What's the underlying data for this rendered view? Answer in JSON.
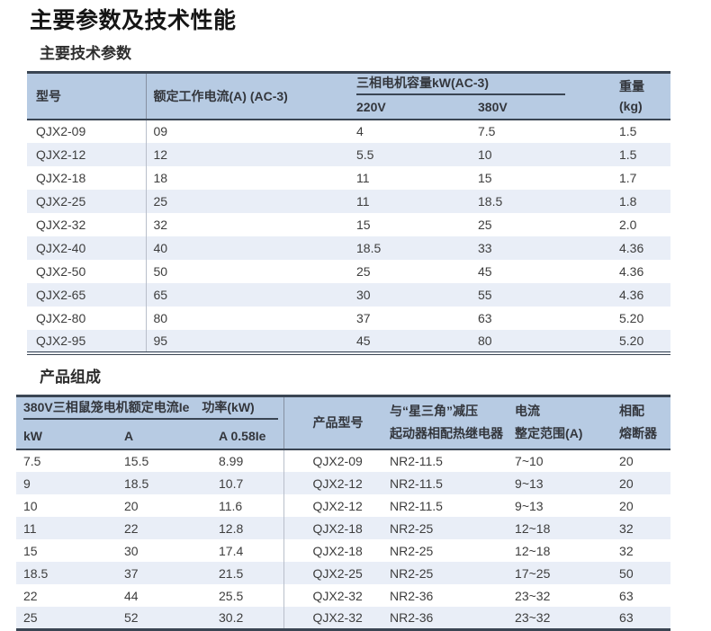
{
  "page": {
    "title": "主要参数及技术性能",
    "section1_title": "主要技术参数",
    "section2_title": "产品组成"
  },
  "colors": {
    "header_bg": "#b7cbe3",
    "stripe_bg": "#e9eef7",
    "border_dark": "#3a4553",
    "text": "#3d3d3d"
  },
  "table1": {
    "headers": {
      "model": "型号",
      "rated_current": "额定工作电流(A) (AC-3)",
      "motor_capacity_group": "三相电机容量kW(AC-3)",
      "v220": "220V",
      "v380": "380V",
      "weight_line1": "重量",
      "weight_line2": "(kg)"
    },
    "rows": [
      [
        "QJX2-09",
        "09",
        "4",
        "7.5",
        "1.5"
      ],
      [
        "QJX2-12",
        "12",
        "5.5",
        "10",
        "1.5"
      ],
      [
        "QJX2-18",
        "18",
        "11",
        "15",
        "1.7"
      ],
      [
        "QJX2-25",
        "25",
        "11",
        "18.5",
        "1.8"
      ],
      [
        "QJX2-32",
        "32",
        "15",
        "25",
        "2.0"
      ],
      [
        "QJX2-40",
        "40",
        "18.5",
        "33",
        "4.36"
      ],
      [
        "QJX2-50",
        "50",
        "25",
        "45",
        "4.36"
      ],
      [
        "QJX2-65",
        "65",
        "30",
        "55",
        "4.36"
      ],
      [
        "QJX2-80",
        "80",
        "37",
        "63",
        "5.20"
      ],
      [
        "QJX2-95",
        "95",
        "45",
        "80",
        "5.20"
      ]
    ]
  },
  "table2": {
    "headers": {
      "motor_group": "380V三相鼠笼电机额定电流Ie　功率(kW)",
      "kw": "kW",
      "a": "A",
      "a058": "A  0.58Ie",
      "product_model": "产品型号",
      "relay_line1": "与“星三角”减压",
      "relay_line2": "起动器相配热继电器",
      "current_line1": "电流",
      "current_line2": "整定范围(A)",
      "fuse_line1": "相配",
      "fuse_line2": "熔断器"
    },
    "rows": [
      [
        "7.5",
        "15.5",
        "8.99",
        "QJX2-09",
        "NR2-11.5",
        "7~10",
        "20"
      ],
      [
        "9",
        "18.5",
        "10.7",
        "QJX2-12",
        "NR2-11.5",
        "9~13",
        "20"
      ],
      [
        "10",
        "20",
        "11.6",
        "QJX2-12",
        "NR2-11.5",
        "9~13",
        "20"
      ],
      [
        "11",
        "22",
        "12.8",
        "QJX2-18",
        "NR2-25",
        "12~18",
        "32"
      ],
      [
        "15",
        "30",
        "17.4",
        "QJX2-18",
        "NR2-25",
        "12~18",
        "32"
      ],
      [
        "18.5",
        "37",
        "21.5",
        "QJX2-25",
        "NR2-25",
        "17~25",
        "50"
      ],
      [
        "22",
        "44",
        "25.5",
        "QJX2-32",
        "NR2-36",
        "23~32",
        "63"
      ],
      [
        "25",
        "52",
        "30.2",
        "QJX2-32",
        "NR2-36",
        "23~32",
        "63"
      ]
    ]
  }
}
